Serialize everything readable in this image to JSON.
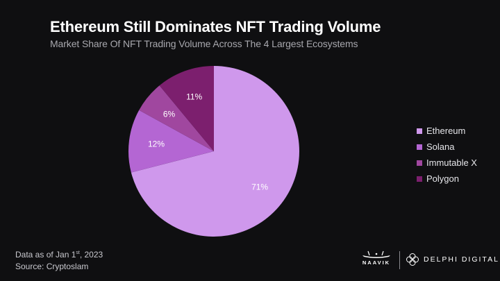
{
  "chart_data": {
    "type": "pie",
    "title": "Ethereum Still Dominates NFT Trading Volume",
    "subtitle": "Market Share Of NFT Trading Volume Across The 4 Largest Ecosystems",
    "categories": [
      "Ethereum",
      "Solana",
      "Immutable X",
      "Polygon"
    ],
    "values": [
      71,
      12,
      6,
      11
    ],
    "labels": [
      "71%",
      "12%",
      "6%",
      "11%"
    ],
    "colors": [
      "#cf98ec",
      "#b466d3",
      "#a0479f",
      "#7c1f6e"
    ],
    "start_angle_deg": 0,
    "direction": "clockwise",
    "legend_position": "right"
  },
  "footer": {
    "date_prefix": "Data as of Jan 1",
    "date_sup": "st",
    "date_suffix": ", 2023",
    "source": "Source: Cryptoslam"
  },
  "branding": {
    "naavik": "NAAVIK",
    "delphi": "DELPHI DIGITAL"
  }
}
